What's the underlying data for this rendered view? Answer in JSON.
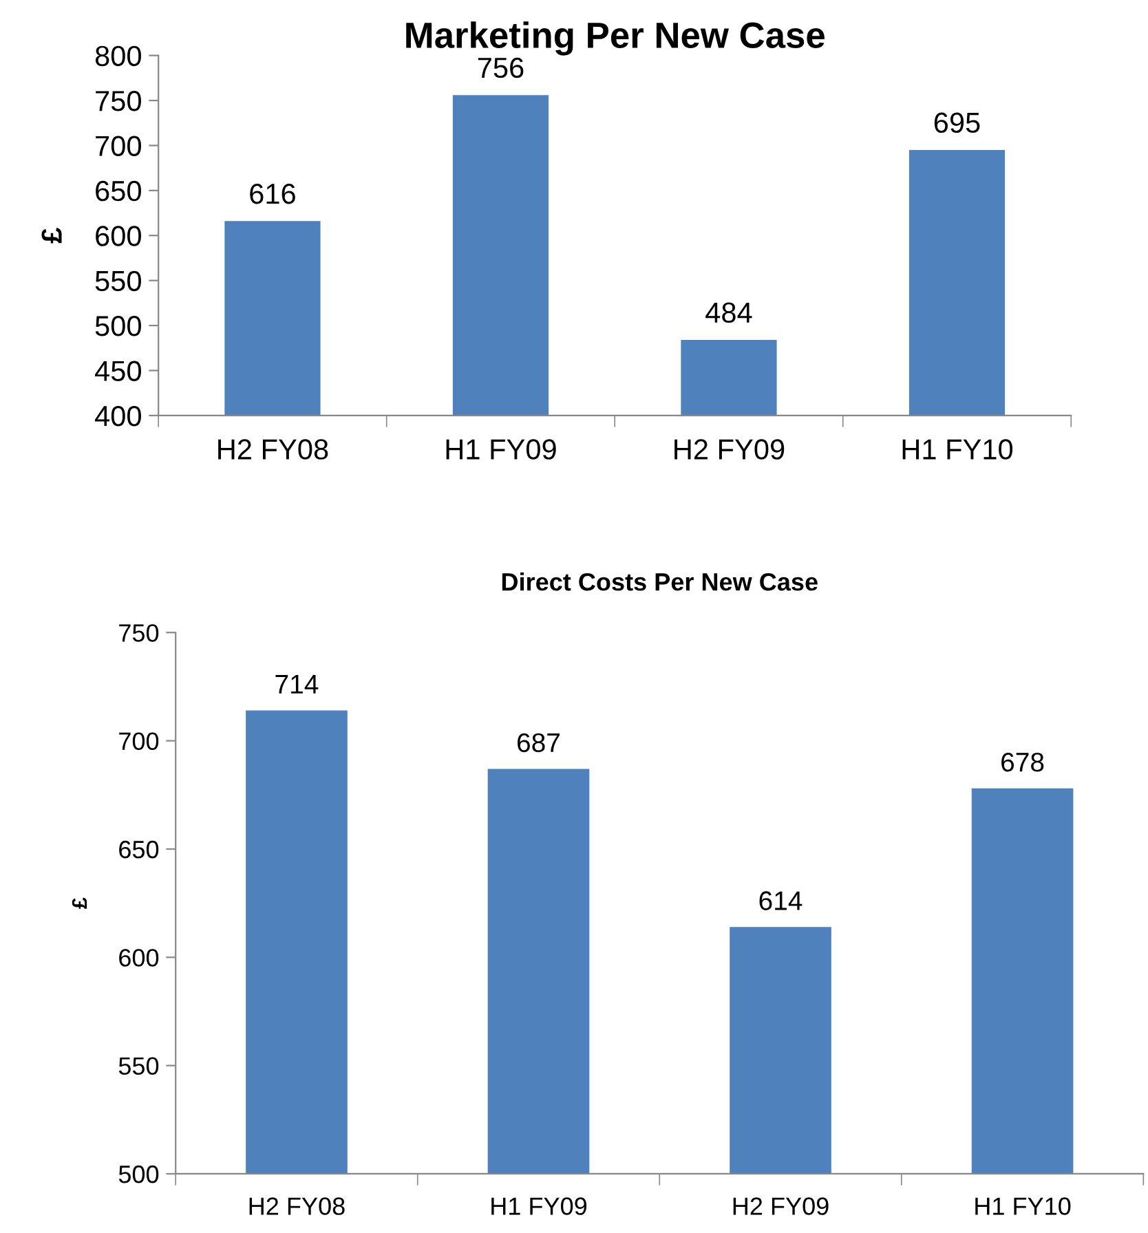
{
  "chart_data": [
    {
      "type": "bar",
      "title": "Marketing Per New Case",
      "ylabel": "£",
      "categories": [
        "H2 FY08",
        "H1 FY09",
        "H2 FY09",
        "H1 FY10"
      ],
      "values": [
        616,
        756,
        484,
        695
      ],
      "color": "#4f81bd",
      "ylim": [
        400,
        800
      ],
      "yticks": [
        400,
        450,
        500,
        550,
        600,
        650,
        700,
        750,
        800
      ],
      "data_labels": true,
      "grid": false,
      "legend": false
    },
    {
      "type": "bar",
      "title": "Direct Costs Per New Case",
      "ylabel": "£",
      "categories": [
        "H2 FY08",
        "H1 FY09",
        "H2 FY09",
        "H1 FY10"
      ],
      "values": [
        714,
        687,
        614,
        678
      ],
      "color": "#4f81bd",
      "ylim": [
        500,
        750
      ],
      "yticks": [
        500,
        550,
        600,
        650,
        700,
        750
      ],
      "data_labels": true,
      "grid": false,
      "legend": false
    }
  ]
}
